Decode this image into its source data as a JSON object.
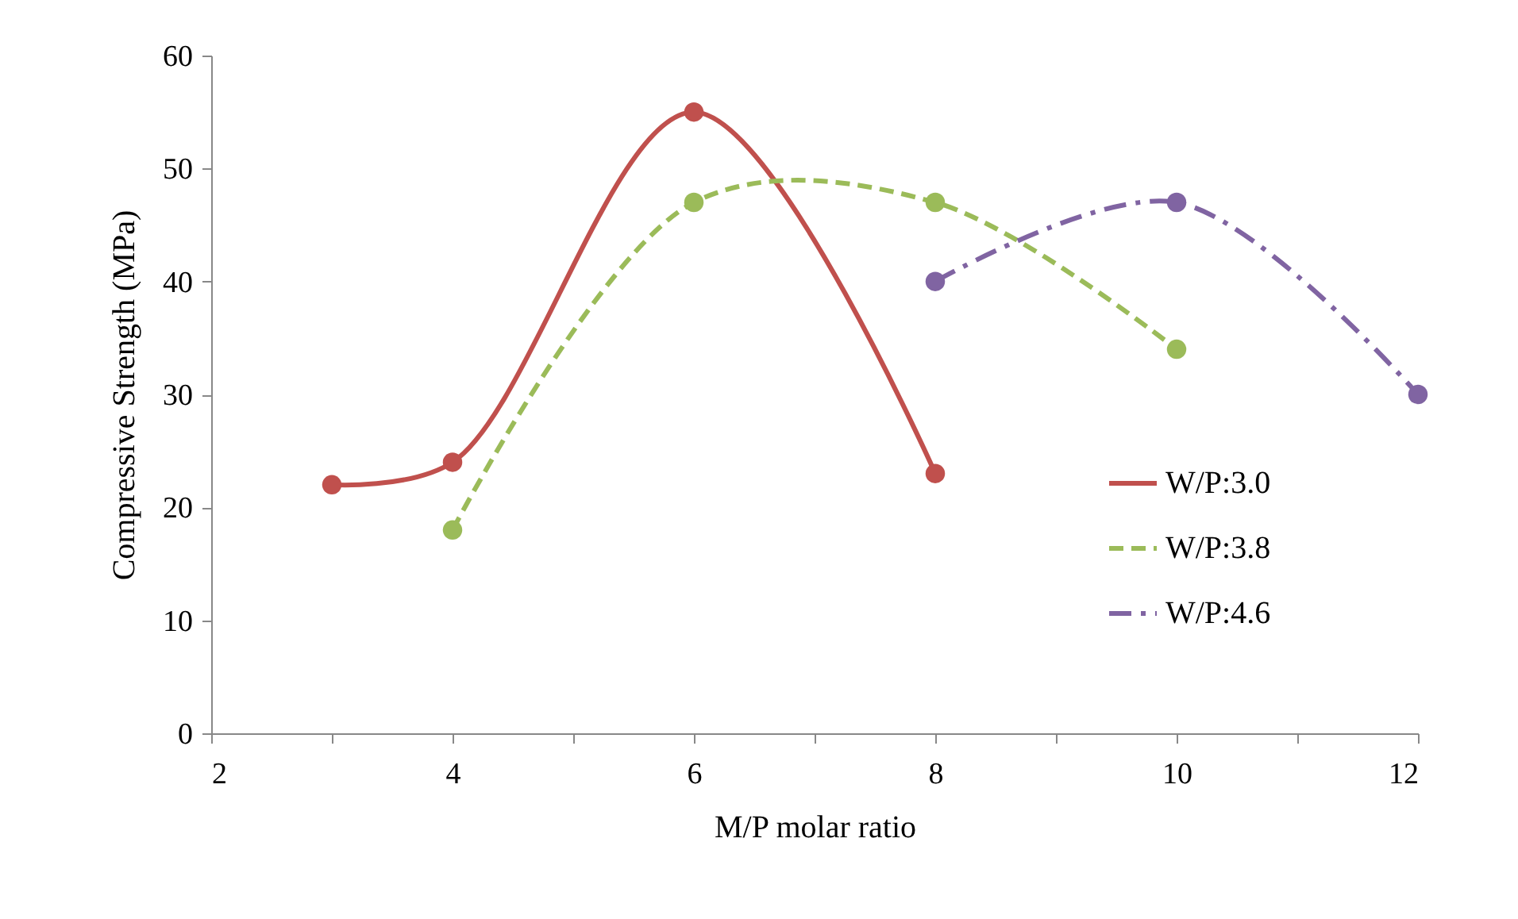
{
  "chart_data": {
    "type": "line",
    "xlabel": "M/P molar ratio",
    "ylabel": "Compressive Strength (MPa)",
    "xlim": [
      2,
      12
    ],
    "xticks": [
      2,
      {
        "value": 3,
        "label": null
      },
      4,
      {
        "value": 5,
        "label": null
      },
      6,
      {
        "value": 7,
        "label": null
      },
      8,
      {
        "value": 9,
        "label": null
      },
      10,
      {
        "value": 11,
        "label": null
      },
      12
    ],
    "ylim": [
      0,
      60
    ],
    "yticks": [
      0,
      10,
      20,
      30,
      40,
      50,
      60
    ],
    "grid": false,
    "legend": "right",
    "marker": "circle",
    "series": [
      {
        "name": "W/P:3.0",
        "color": "#c0504d",
        "line_style": "solid",
        "x": [
          3,
          4,
          6,
          8
        ],
        "values": [
          22,
          24,
          55,
          23
        ]
      },
      {
        "name": "W/P:3.8",
        "color": "#9bbb59",
        "line_style": "dashed",
        "x": [
          4,
          6,
          8,
          10
        ],
        "values": [
          18,
          47,
          47,
          34
        ]
      },
      {
        "name": "W/P:4.6",
        "color": "#8064a2",
        "line_style": "dashdot",
        "x": [
          8,
          10,
          12
        ],
        "values": [
          40,
          47,
          30
        ]
      }
    ]
  }
}
